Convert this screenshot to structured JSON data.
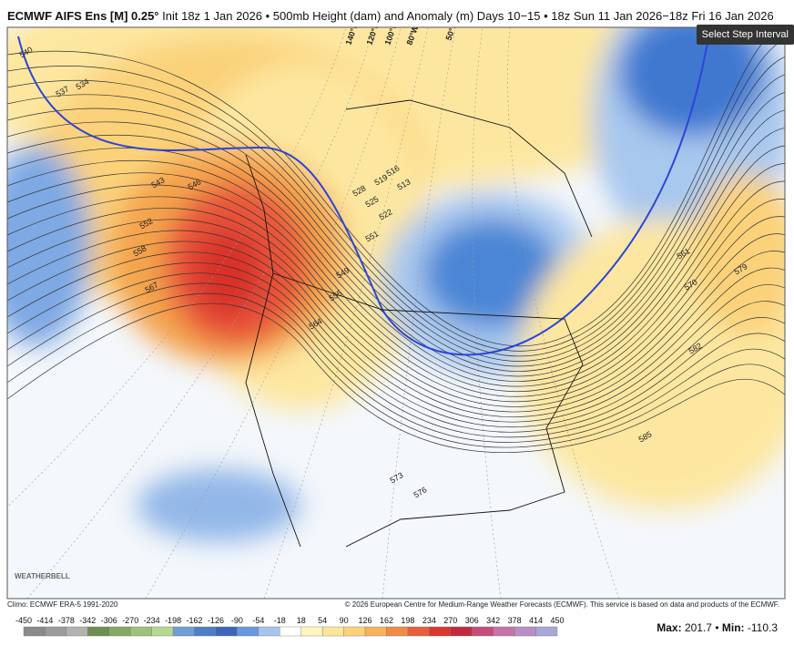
{
  "header": {
    "model": "ECMWF AIFS Ens [M] 0.25°",
    "description": "Init 18z 1 Jan 2026 • 500mb Height (dam) and Anomaly (m) Days 10−15 • 18z Sun 11 Jan 2026−18z Fri 16 Jan 2026",
    "button": "Select Step Interval"
  },
  "map": {
    "longitude_labels": [
      "140°W",
      "120°W",
      "100°W",
      "80°W",
      "50°W"
    ],
    "contour_labels": [
      "540",
      "537",
      "534",
      "543",
      "546",
      "552",
      "558",
      "567",
      "528",
      "525",
      "522",
      "519",
      "516",
      "513",
      "551",
      "549",
      "555",
      "564",
      "573",
      "576",
      "561",
      "570",
      "579",
      "582",
      "585"
    ],
    "logo": "WEATHERBELL"
  },
  "colorbar": {
    "ticks": [
      -450,
      -414,
      -378,
      -342,
      -306,
      -270,
      -234,
      -198,
      -162,
      -126,
      -90,
      -54,
      -18,
      18,
      54,
      90,
      126,
      162,
      198,
      234,
      270,
      306,
      342,
      378,
      414,
      450
    ]
  },
  "footer": {
    "climo": "Climo: ECMWF ERA-5 1991-2020",
    "copyright": "© 2026 European Centre for Medium-Range Weather Forecasts (ECMWF). This service is based on data and products of the ECMWF.",
    "max_label": "Max:",
    "max": 201.7,
    "separator": "•",
    "min_label": "Min:",
    "min": -110.3
  }
}
